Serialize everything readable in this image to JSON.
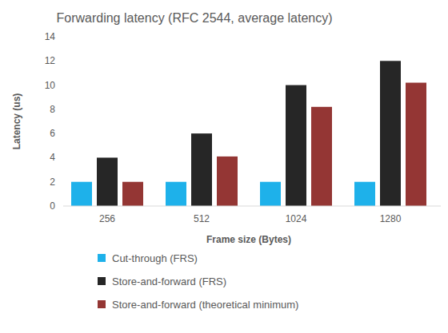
{
  "chart_data": {
    "type": "bar",
    "title": "Forwarding latency (RFC 2544, average latency)",
    "x_label": "Frame size (Bytes)",
    "y_label": "Latency (us)",
    "categories": [
      "256",
      "512",
      "1024",
      "1280"
    ],
    "series": [
      {
        "name": "Cut-through (FRS)",
        "color": "#1eb1ea",
        "values": [
          2,
          2,
          2,
          2
        ]
      },
      {
        "name": "Store-and-forward (FRS)",
        "color": "#262626",
        "values": [
          4,
          6,
          10,
          12
        ]
      },
      {
        "name": "Store-and-forward (theoretical minimum)",
        "color": "#943634",
        "values": [
          2,
          4.1,
          8.2,
          10.2
        ]
      }
    ],
    "ylim": [
      0,
      14
    ],
    "yticks": [
      0,
      2,
      4,
      6,
      8,
      10,
      12,
      14
    ],
    "grid": false,
    "legend": "bottom"
  }
}
